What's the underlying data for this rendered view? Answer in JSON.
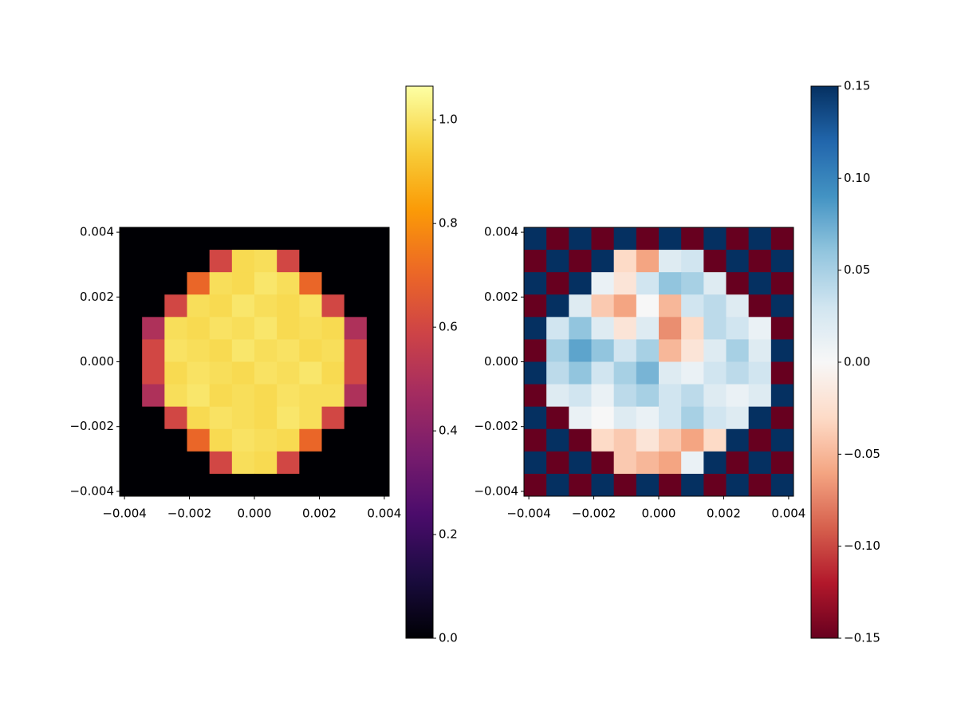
{
  "chart_data": [
    {
      "type": "heatmap",
      "cmap": "inferno",
      "xlim": [
        -0.00415,
        0.00415
      ],
      "ylim": [
        -0.00415,
        0.00415
      ],
      "xticks": [
        {
          "value": -0.004,
          "label": "−0.004"
        },
        {
          "value": -0.002,
          "label": "−0.002"
        },
        {
          "value": 0,
          "label": "0.000"
        },
        {
          "value": 0.002,
          "label": "0.002"
        },
        {
          "value": 0.004,
          "label": "0.004"
        }
      ],
      "yticks": [
        {
          "value": -0.004,
          "label": "−0.004"
        },
        {
          "value": -0.002,
          "label": "−0.002"
        },
        {
          "value": 0,
          "label": "0.000"
        },
        {
          "value": 0.002,
          "label": "0.002"
        },
        {
          "value": 0.004,
          "label": "0.004"
        }
      ],
      "clim": [
        0,
        1.065
      ],
      "cticks": [
        {
          "value": 0,
          "label": "0.0"
        },
        {
          "value": 0.2,
          "label": "0.2"
        },
        {
          "value": 0.4,
          "label": "0.4"
        },
        {
          "value": 0.6,
          "label": "0.6"
        },
        {
          "value": 0.8,
          "label": "0.8"
        },
        {
          "value": 1,
          "label": "1.0"
        }
      ],
      "z": [
        [
          0,
          0,
          0,
          0,
          0,
          0,
          0,
          0,
          0,
          0,
          0,
          0
        ],
        [
          0,
          0,
          0,
          0,
          0.6,
          0.97,
          0.98,
          0.6,
          0,
          0,
          0,
          0
        ],
        [
          0,
          0,
          0,
          0.7,
          0.98,
          0.97,
          1.0,
          0.98,
          0.7,
          0,
          0,
          0
        ],
        [
          0,
          0,
          0.6,
          0.98,
          0.97,
          1.0,
          0.98,
          0.97,
          0.99,
          0.6,
          0,
          0
        ],
        [
          0,
          0.5,
          0.98,
          0.97,
          0.99,
          0.98,
          1.0,
          0.97,
          0.98,
          0.97,
          0.5,
          0
        ],
        [
          0,
          0.6,
          0.99,
          0.98,
          0.97,
          1.0,
          0.98,
          0.99,
          0.97,
          0.98,
          0.6,
          0
        ],
        [
          0,
          0.6,
          0.97,
          0.99,
          0.98,
          0.97,
          0.99,
          0.98,
          1.0,
          0.97,
          0.6,
          0
        ],
        [
          0,
          0.5,
          0.98,
          1.0,
          0.97,
          0.98,
          0.97,
          0.99,
          0.98,
          0.98,
          0.5,
          0
        ],
        [
          0,
          0,
          0.6,
          0.97,
          0.99,
          0.98,
          0.97,
          1.0,
          0.98,
          0.6,
          0,
          0
        ],
        [
          0,
          0,
          0,
          0.7,
          0.97,
          0.99,
          0.98,
          0.97,
          0.7,
          0,
          0,
          0
        ],
        [
          0,
          0,
          0,
          0,
          0.6,
          0.98,
          0.97,
          0.6,
          0,
          0,
          0,
          0
        ],
        [
          0,
          0,
          0,
          0,
          0,
          0,
          0,
          0,
          0,
          0,
          0,
          0
        ]
      ]
    },
    {
      "type": "heatmap",
      "cmap": "RdBu",
      "xlim": [
        -0.00415,
        0.00415
      ],
      "ylim": [
        -0.00415,
        0.00415
      ],
      "xticks": [
        {
          "value": -0.004,
          "label": "−0.004"
        },
        {
          "value": -0.002,
          "label": "−0.002"
        },
        {
          "value": 0,
          "label": "0.000"
        },
        {
          "value": 0.002,
          "label": "0.002"
        },
        {
          "value": 0.004,
          "label": "0.004"
        }
      ],
      "yticks": [
        {
          "value": -0.004,
          "label": "−0.004"
        },
        {
          "value": -0.002,
          "label": "−0.002"
        },
        {
          "value": 0,
          "label": "0.000"
        },
        {
          "value": 0.002,
          "label": "0.002"
        },
        {
          "value": 0.004,
          "label": "0.004"
        }
      ],
      "clim": [
        -0.15,
        0.15
      ],
      "cticks": [
        {
          "value": -0.15,
          "label": "−0.15"
        },
        {
          "value": -0.1,
          "label": "−0.10"
        },
        {
          "value": -0.05,
          "label": "−0.05"
        },
        {
          "value": 0,
          "label": "0.00"
        },
        {
          "value": 0.05,
          "label": "0.05"
        },
        {
          "value": 0.1,
          "label": "0.10"
        },
        {
          "value": 0.15,
          "label": "0.15"
        }
      ],
      "z": [
        [
          0.15,
          -0.15,
          0.15,
          -0.15,
          0.15,
          -0.15,
          0.15,
          -0.15,
          0.15,
          -0.15,
          0.15,
          -0.15
        ],
        [
          -0.15,
          0.15,
          -0.15,
          0.15,
          -0.03,
          -0.06,
          0.02,
          0.03,
          -0.15,
          0.15,
          -0.15,
          0.15
        ],
        [
          0.15,
          -0.15,
          0.15,
          0.01,
          -0.02,
          0.03,
          0.06,
          0.05,
          0.02,
          -0.15,
          0.15,
          -0.15
        ],
        [
          -0.15,
          0.15,
          0.02,
          -0.04,
          -0.06,
          0.0,
          -0.05,
          0.03,
          0.04,
          0.02,
          -0.15,
          0.15
        ],
        [
          0.15,
          0.03,
          0.06,
          0.02,
          -0.02,
          0.02,
          -0.07,
          -0.03,
          0.04,
          0.03,
          0.01,
          -0.15
        ],
        [
          -0.15,
          0.05,
          0.08,
          0.06,
          0.03,
          0.05,
          -0.05,
          -0.02,
          0.02,
          0.05,
          0.02,
          0.15
        ],
        [
          0.15,
          0.04,
          0.06,
          0.03,
          0.05,
          0.07,
          0.02,
          0.01,
          0.03,
          0.04,
          0.03,
          -0.15
        ],
        [
          -0.15,
          0.02,
          0.03,
          0.01,
          0.04,
          0.05,
          0.03,
          0.04,
          0.02,
          0.01,
          0.02,
          0.15
        ],
        [
          0.15,
          -0.15,
          0.01,
          0.0,
          0.02,
          0.01,
          0.03,
          0.05,
          0.03,
          0.02,
          0.15,
          -0.15
        ],
        [
          -0.15,
          0.15,
          -0.15,
          -0.03,
          -0.04,
          -0.02,
          -0.04,
          -0.06,
          -0.03,
          0.15,
          -0.15,
          0.15
        ],
        [
          0.15,
          -0.15,
          0.15,
          -0.15,
          -0.04,
          -0.05,
          -0.06,
          0.01,
          0.15,
          -0.15,
          0.15,
          -0.15
        ],
        [
          -0.15,
          0.15,
          -0.15,
          0.15,
          -0.15,
          0.15,
          -0.15,
          0.15,
          -0.15,
          0.15,
          -0.15,
          0.15
        ]
      ]
    }
  ]
}
